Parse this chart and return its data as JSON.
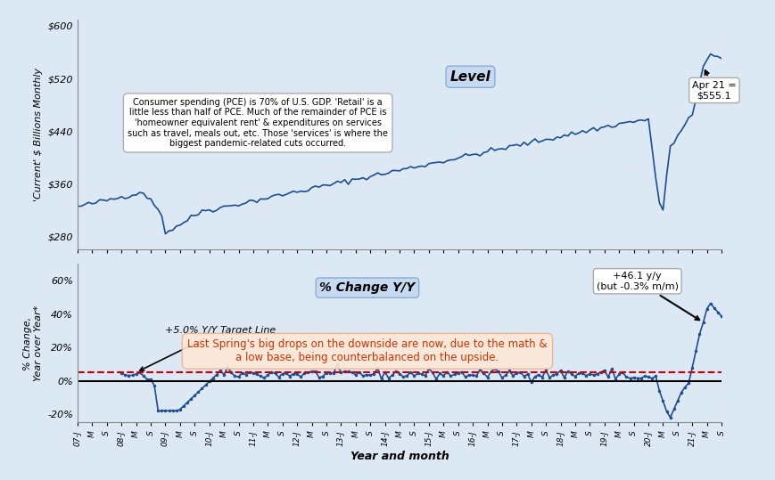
{
  "title": "",
  "xlabel": "Year and month",
  "ylabel_top": "'Current' $ Billions Monthly",
  "ylabel_bot": "% Change,\nYear over Year*",
  "bg_color": "#dce9f5",
  "plot_bg_color": "#e8f0f8",
  "line_color": "#1f4e8c",
  "dashed_line_color": "#cc0000",
  "target_line_value": 5.0,
  "annotation_level": "Apr 21 =\n$555.1",
  "annotation_yoy": "+46.1 y/y\n(but -0.3% m/m)",
  "label_level": "Level",
  "label_pct": "% Change Y/Y",
  "label_target": "+5.0% Y/Y Target Line",
  "note_box_text": "Last Spring's big drops on the downside are now, due to the math &\na low base, being counterbalanced on the upside.",
  "info_box_text": "Consumer spending (PCE) is 70% of U.S. GDP. 'Retail' is a\nlittle less than half of PCE. Much of the remainder of PCE is\n'homeowner equivalent rent' & expenditures on services\nsuch as travel, meals out, etc. Those 'services' is where the\nbiggest pandemic-related cuts occurred.",
  "x_tick_labels": [
    "07-J",
    "M",
    "S",
    "08-J",
    "M",
    "S",
    "09-J",
    "M",
    "S",
    "10-J",
    "M",
    "S",
    "11-J",
    "M",
    "S",
    "12-J",
    "M",
    "S",
    "13-J",
    "M",
    "S",
    "14-J",
    "M",
    "S",
    "15-J",
    "M",
    "S",
    "16-J",
    "M",
    "S",
    "17-J",
    "M",
    "S",
    "18-J",
    "M",
    "S",
    "19-J",
    "M",
    "S",
    "20-J",
    "M",
    "S",
    "21-J",
    "M",
    "S"
  ],
  "level_ylim": [
    260,
    610
  ],
  "level_yticks": [
    280,
    360,
    440,
    520,
    600
  ],
  "level_yticklabels": [
    "$280",
    "$360",
    "$440",
    "$520",
    "$600"
  ],
  "pct_ylim": [
    -25,
    70
  ],
  "pct_yticks": [
    -20,
    0,
    20,
    40,
    60
  ],
  "pct_yticklabels": [
    "-20%",
    "0%",
    "20%",
    "40%",
    "60%"
  ]
}
